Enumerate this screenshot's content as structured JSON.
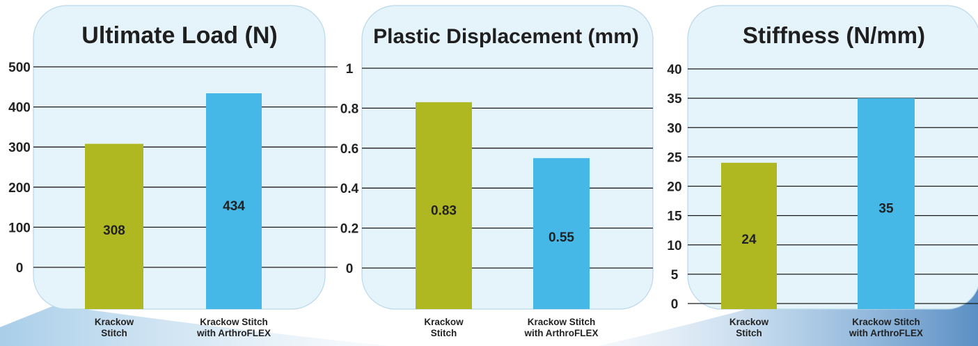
{
  "chart_data": [
    {
      "type": "bar",
      "title": "Ultimate Load (N)",
      "categories": [
        "Krackow Stitch",
        "Krackow Stitch with ArthroFLEX"
      ],
      "category_lines": [
        [
          "Krackow",
          "Stitch"
        ],
        [
          "Krackow Stitch",
          "with ArthroFLEX"
        ]
      ],
      "values": [
        308,
        434
      ],
      "data_labels": [
        "308",
        "434"
      ],
      "bar_colors": [
        "#b0b821",
        "#45b8e8"
      ],
      "yticks": [
        0,
        100,
        200,
        300,
        400,
        500
      ],
      "ytick_labels": [
        "0",
        "100",
        "200",
        "300",
        "400",
        "500"
      ],
      "ylim": [
        0,
        500
      ],
      "grid": true
    },
    {
      "type": "bar",
      "title": "Plastic Displacement (mm)",
      "categories": [
        "Krackow Stitch",
        "Krackow Stitch with ArthroFLEX"
      ],
      "category_lines": [
        [
          "Krackow",
          "Stitch"
        ],
        [
          "Krackow Stitch",
          "with ArthroFLEX"
        ]
      ],
      "values": [
        0.83,
        0.55
      ],
      "data_labels": [
        "0.83",
        "0.55"
      ],
      "bar_colors": [
        "#b0b821",
        "#45b8e8"
      ],
      "yticks": [
        0,
        0.2,
        0.4,
        0.6,
        0.8,
        1
      ],
      "ytick_labels": [
        "0",
        "0.2",
        "0.4",
        "0.6",
        "0.8",
        "1"
      ],
      "ylim": [
        0,
        1
      ],
      "grid": true
    },
    {
      "type": "bar",
      "title": "Stiffness (N/mm)",
      "categories": [
        "Krackow Stitch",
        "Krackow Stitch with ArthroFLEX"
      ],
      "category_lines": [
        [
          "Krackow",
          "Stitch"
        ],
        [
          "Krackow Stitch",
          "with ArthroFLEX"
        ]
      ],
      "values": [
        24,
        35
      ],
      "data_labels": [
        "24",
        "35"
      ],
      "bar_colors": [
        "#b0b821",
        "#45b8e8"
      ],
      "yticks": [
        0,
        5,
        10,
        15,
        20,
        25,
        30,
        35,
        40
      ],
      "ytick_labels": [
        "0",
        "5",
        "10",
        "15",
        "20",
        "25",
        "30",
        "35",
        "40"
      ],
      "ylim": [
        0,
        40
      ],
      "grid": true
    }
  ]
}
